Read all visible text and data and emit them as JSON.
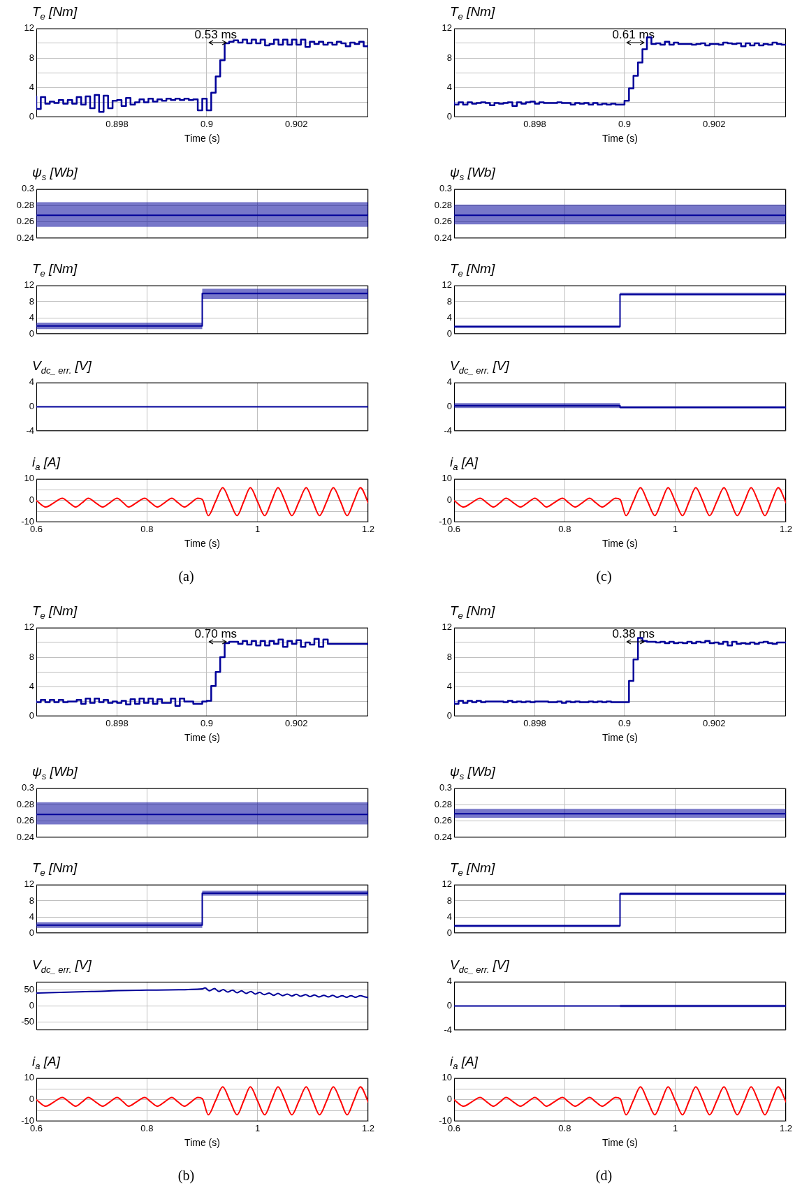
{
  "chart_data": [
    {
      "type": "step",
      "title": "T$_{e}$ [Nm]",
      "xlabel": "Time (s)",
      "xlim": [
        0.8962,
        0.9036
      ],
      "xticks": [
        0.898,
        0.9,
        0.902
      ],
      "ylim": [
        0,
        12
      ],
      "yticks": [
        0,
        {
          "value": 2,
          "label": null
        },
        4,
        {
          "value": 6,
          "label": null
        },
        8,
        {
          "value": 10,
          "label": null
        },
        12
      ],
      "grid": true,
      "x": [
        0.8962,
        0.8963,
        0.8964,
        0.8965,
        0.8966,
        0.8967,
        0.8968,
        0.8969,
        0.897,
        0.8971,
        0.8972,
        0.8973,
        0.8974,
        0.8975,
        0.8976,
        0.8977,
        0.8978,
        0.8979,
        0.898,
        0.8981,
        0.8982,
        0.8983,
        0.8984,
        0.8985,
        0.8986,
        0.8987,
        0.8988,
        0.8989,
        0.899,
        0.8991,
        0.8992,
        0.8993,
        0.8994,
        0.8995,
        0.8996,
        0.8997,
        0.8998,
        0.8999,
        0.9,
        0.9001,
        0.9002,
        0.9003,
        0.9004,
        0.9005,
        0.9006,
        0.9007,
        0.9008,
        0.9009,
        0.901,
        0.9011,
        0.9012,
        0.9013,
        0.9014,
        0.9015,
        0.9016,
        0.9017,
        0.9018,
        0.9019,
        0.902,
        0.9021,
        0.9022,
        0.9023,
        0.9024,
        0.9025,
        0.9026,
        0.9027,
        0.9028,
        0.9029,
        0.903,
        0.9031,
        0.9032,
        0.9033,
        0.9034,
        0.9035,
        0.9036
      ],
      "series": [
        {
          "color": "#000099",
          "values": [
            2.8,
            1.1,
            2.7,
            1.8,
            2.1,
            1.9,
            2.3,
            1.8,
            2.3,
            1.8,
            2.7,
            1.7,
            2.8,
            1.2,
            3.0,
            0.7,
            2.9,
            1.2,
            2.2,
            2.3,
            1.5,
            2.6,
            1.7,
            2.0,
            2.4,
            2.0,
            2.5,
            2.1,
            2.4,
            2.2,
            2.5,
            2.3,
            2.5,
            2.3,
            2.5,
            2.3,
            2.4,
            0.9,
            2.5,
            0.9,
            3.3,
            5.5,
            7.7,
            10.0,
            10.2,
            10.4,
            10.1,
            10.5,
            10.0,
            10.5,
            10.0,
            10.5,
            9.7,
            9.9,
            10.5,
            9.8,
            10.5,
            9.8,
            10.5,
            9.8,
            10.5,
            9.5,
            10.2,
            9.9,
            10.2,
            9.8,
            10.1,
            9.8,
            10.2,
            10.0,
            9.6,
            10.1,
            9.9,
            10.2,
            9.6
          ]
        }
      ],
      "annotations": [
        "0.53 ms"
      ]
    },
    {
      "type": "line",
      "title": "ψ$_{s}$ [Wb]",
      "xlim": [
        0.6,
        1.2
      ],
      "xticks": [
        0.6,
        0.8,
        1,
        1.2
      ],
      "ylim": [
        0.24,
        0.3
      ],
      "yticks": [
        0.24,
        0.26,
        0.28,
        0.3
      ],
      "grid": true,
      "tick_labels": "y",
      "series": [
        {
          "color": "#000099",
          "x": [
            0.6,
            1.2
          ],
          "values": [
            0.268,
            0.268
          ],
          "lower": [
            0.254,
            0.254
          ],
          "upper": [
            0.284,
            0.284
          ]
        }
      ]
    },
    {
      "type": "line",
      "title": "T$_{e}$ [Nm]",
      "xlim": [
        0.6,
        1.2
      ],
      "xticks": [
        0.6,
        0.8,
        1,
        1.2
      ],
      "ylim": [
        0,
        12
      ],
      "yticks": [
        0,
        4,
        8,
        12
      ],
      "grid": true,
      "tick_labels": "y",
      "series": [
        {
          "color": "#000099",
          "x": [
            0.6,
            0.9,
            0.9,
            1.2
          ],
          "values": [
            2,
            2,
            10,
            10
          ],
          "lower": [
            1.2,
            1.2,
            8.7,
            8.7
          ],
          "upper": [
            2.8,
            2.8,
            11.2,
            11.2
          ]
        }
      ]
    },
    {
      "type": "line",
      "title": "V$_{dc_ err.}$ [V]",
      "xlim": [
        0.6,
        1.2
      ],
      "xticks": [
        0.6,
        0.8,
        1,
        1.2
      ],
      "ylim": [
        -4,
        4
      ],
      "yticks": [
        -4,
        0,
        4
      ],
      "grid": true,
      "tick_labels": "y",
      "series": [
        {
          "color": "#000099",
          "x": [
            0.6,
            1.2
          ],
          "values": [
            0,
            0
          ]
        }
      ]
    },
    {
      "type": "line",
      "title": "i$_{a}$ [A]",
      "xlabel": "Time (s)",
      "xlim": [
        0.6,
        1.2
      ],
      "xticks": [
        0.6,
        0.8,
        1,
        1.2
      ],
      "ylim": [
        -10,
        10
      ],
      "yticks": [
        -10,
        {
          "value": -5,
          "label": null
        },
        0,
        {
          "value": 5,
          "label": null
        },
        10
      ],
      "grid": true,
      "series": [
        {
          "color": "#ff0000",
          "x": [
            0.6,
            0.617,
            0.632,
            0.647,
            0.659,
            0.671,
            0.683,
            0.694,
            0.707,
            0.72,
            0.733,
            0.746,
            0.757,
            0.767,
            0.781,
            0.796,
            0.807,
            0.819,
            0.832,
            0.845,
            0.856,
            0.868,
            0.88,
            0.892,
            0.9,
            0.911,
            0.924,
            0.937,
            0.95,
            0.963,
            0.975,
            0.987,
            1.0,
            1.013,
            1.025,
            1.037,
            1.05,
            1.062,
            1.075,
            1.088,
            1.1,
            1.112,
            1.125,
            1.137,
            1.15,
            1.162,
            1.174,
            1.186,
            1.2
          ],
          "values": [
            0,
            -3,
            -1,
            1,
            -1,
            -3,
            -1,
            1,
            -1,
            -3,
            -1,
            1,
            -1,
            -3,
            -1,
            1,
            -1,
            -3,
            -1,
            1,
            -1,
            -3,
            -1,
            1,
            0.5,
            -7,
            -0.5,
            6,
            -0.5,
            -7,
            -0.5,
            6,
            -0.5,
            -7,
            -0.5,
            6,
            -0.5,
            -7,
            -0.5,
            6,
            -0.5,
            -7,
            -0.5,
            6,
            -0.5,
            -7,
            -0.5,
            6,
            -1
          ]
        }
      ],
      "annotations": [
        "(a)"
      ]
    },
    {
      "type": "step",
      "title": "T$_{e}$ [Nm]",
      "xlabel": "Time (s)",
      "xlim": [
        0.8962,
        0.9036
      ],
      "xticks": [
        0.898,
        0.9,
        0.902
      ],
      "ylim": [
        0,
        12
      ],
      "yticks": [
        0,
        {
          "value": 2,
          "label": null
        },
        4,
        {
          "value": 6,
          "label": null
        },
        8,
        {
          "value": 10,
          "label": null
        },
        12
      ],
      "grid": true,
      "x": [
        0.8962,
        0.8963,
        0.8964,
        0.8965,
        0.8966,
        0.8967,
        0.8968,
        0.8969,
        0.897,
        0.8971,
        0.8972,
        0.8973,
        0.8974,
        0.8975,
        0.8976,
        0.8977,
        0.8978,
        0.8979,
        0.898,
        0.8981,
        0.8982,
        0.8983,
        0.8984,
        0.8985,
        0.8986,
        0.8987,
        0.8988,
        0.8989,
        0.899,
        0.8991,
        0.8992,
        0.8993,
        0.8994,
        0.8995,
        0.8996,
        0.8997,
        0.8998,
        0.8999,
        0.9,
        0.9001,
        0.9002,
        0.9003,
        0.9004,
        0.9005,
        0.9006,
        0.9007,
        0.9008,
        0.9009,
        0.901,
        0.9011,
        0.9012,
        0.9013,
        0.9014,
        0.9015,
        0.9016,
        0.9017,
        0.9018,
        0.9019,
        0.902,
        0.9021,
        0.9022,
        0.9023,
        0.9024,
        0.9025,
        0.9026,
        0.9027,
        0.9028,
        0.9029,
        0.903,
        0.9031,
        0.9032,
        0.9033,
        0.9034,
        0.9035,
        0.9036
      ],
      "series": [
        {
          "color": "#000099",
          "values": [
            2.0,
            1.7,
            2.0,
            1.7,
            2.0,
            1.8,
            1.9,
            2.0,
            1.9,
            1.6,
            1.9,
            1.8,
            1.9,
            2.0,
            1.5,
            2.0,
            1.8,
            2.0,
            2.1,
            1.8,
            2.0,
            1.9,
            1.9,
            1.9,
            2.0,
            1.9,
            1.9,
            1.7,
            1.9,
            1.8,
            1.9,
            1.7,
            1.9,
            1.7,
            1.8,
            1.7,
            1.8,
            1.7,
            1.7,
            2.2,
            3.9,
            5.6,
            7.4,
            9.2,
            10.8,
            9.9,
            10.0,
            9.8,
            10.2,
            9.8,
            10.1,
            9.9,
            9.9,
            9.9,
            9.8,
            9.9,
            10.0,
            9.7,
            9.9,
            9.9,
            9.8,
            10.1,
            10.0,
            9.9,
            10.0,
            9.6,
            10.0,
            9.7,
            10.0,
            9.7,
            9.9,
            9.8,
            10.1,
            9.9,
            9.8
          ]
        }
      ],
      "annotations": [
        "0.61 ms"
      ]
    },
    {
      "type": "line",
      "title": "ψ$_{s}$ [Wb]",
      "xlim": [
        0.6,
        1.2
      ],
      "xticks": [
        0.6,
        0.8,
        1,
        1.2
      ],
      "ylim": [
        0.24,
        0.3
      ],
      "yticks": [
        0.24,
        0.26,
        0.28,
        0.3
      ],
      "grid": true,
      "tick_labels": "y",
      "series": [
        {
          "color": "#000099",
          "x": [
            0.6,
            1.2
          ],
          "values": [
            0.268,
            0.268
          ],
          "lower": [
            0.257,
            0.257
          ],
          "upper": [
            0.281,
            0.281
          ]
        }
      ]
    },
    {
      "type": "line",
      "title": "T$_{e}$ [Nm]",
      "xlim": [
        0.6,
        1.2
      ],
      "xticks": [
        0.6,
        0.8,
        1,
        1.2
      ],
      "ylim": [
        0,
        12
      ],
      "yticks": [
        0,
        4,
        8,
        12
      ],
      "grid": true,
      "tick_labels": "y",
      "series": [
        {
          "color": "#000099",
          "x": [
            0.6,
            0.9,
            0.9,
            1.2
          ],
          "values": [
            1.8,
            1.8,
            9.8,
            9.8
          ],
          "lower": [
            1.5,
            1.5,
            9.5,
            9.5
          ],
          "upper": [
            2.1,
            2.1,
            10.2,
            10.2
          ]
        }
      ]
    },
    {
      "type": "line",
      "title": "V$_{dc_ err.}$ [V]",
      "xlim": [
        0.6,
        1.2
      ],
      "xticks": [
        0.6,
        0.8,
        1,
        1.2
      ],
      "ylim": [
        -4,
        4
      ],
      "yticks": [
        -4,
        0,
        4
      ],
      "grid": true,
      "tick_labels": "y",
      "series": [
        {
          "color": "#000099",
          "x": [
            0.6,
            0.9,
            0.9,
            1.2
          ],
          "values": [
            0.2,
            0.2,
            -0.1,
            -0.1
          ],
          "lower": [
            -0.2,
            -0.2,
            -0.3,
            -0.3
          ],
          "upper": [
            0.6,
            0.6,
            0.1,
            0.1
          ]
        }
      ]
    },
    {
      "type": "line",
      "title": "i$_{a}$ [A]",
      "xlabel": "Time (s)",
      "xlim": [
        0.6,
        1.2
      ],
      "xticks": [
        0.6,
        0.8,
        1,
        1.2
      ],
      "ylim": [
        -10,
        10
      ],
      "yticks": [
        -10,
        {
          "value": -5,
          "label": null
        },
        0,
        {
          "value": 5,
          "label": null
        },
        10
      ],
      "grid": true,
      "series": [
        {
          "color": "#ff0000",
          "x": [
            0.6,
            0.617,
            0.632,
            0.647,
            0.659,
            0.671,
            0.683,
            0.694,
            0.707,
            0.72,
            0.733,
            0.746,
            0.757,
            0.767,
            0.781,
            0.796,
            0.807,
            0.819,
            0.832,
            0.845,
            0.856,
            0.868,
            0.88,
            0.892,
            0.9,
            0.911,
            0.924,
            0.937,
            0.95,
            0.963,
            0.975,
            0.987,
            1.0,
            1.013,
            1.025,
            1.037,
            1.05,
            1.062,
            1.075,
            1.088,
            1.1,
            1.112,
            1.125,
            1.137,
            1.15,
            1.162,
            1.174,
            1.186,
            1.2
          ],
          "values": [
            0,
            -3,
            -1,
            1,
            -1,
            -3,
            -1,
            1,
            -1,
            -3,
            -1,
            1,
            -1,
            -3,
            -1,
            1,
            -1,
            -3,
            -1,
            1,
            -1,
            -3,
            -1,
            1,
            0.5,
            -7,
            -0.5,
            6,
            -0.5,
            -7,
            -0.5,
            6,
            -0.5,
            -7,
            -0.5,
            6,
            -0.5,
            -7,
            -0.5,
            6,
            -0.5,
            -7,
            -0.5,
            6,
            -0.5,
            -7,
            -0.5,
            6,
            -1
          ]
        }
      ],
      "annotations": [
        "(c)"
      ]
    },
    {
      "type": "step",
      "title": "T$_{e}$ [Nm]",
      "xlabel": "Time (s)",
      "xlim": [
        0.8962,
        0.9036
      ],
      "xticks": [
        0.898,
        0.9,
        0.902
      ],
      "ylim": [
        0,
        12
      ],
      "yticks": [
        0,
        {
          "value": 2,
          "label": null
        },
        4,
        {
          "value": 6,
          "label": null
        },
        8,
        {
          "value": 10,
          "label": null
        },
        12
      ],
      "grid": true,
      "x": [
        0.8962,
        0.8963,
        0.8964,
        0.8965,
        0.8966,
        0.8967,
        0.8968,
        0.8969,
        0.897,
        0.8971,
        0.8972,
        0.8973,
        0.8974,
        0.8975,
        0.8976,
        0.8977,
        0.8978,
        0.8979,
        0.898,
        0.8981,
        0.8982,
        0.8983,
        0.8984,
        0.8985,
        0.8986,
        0.8987,
        0.8988,
        0.8989,
        0.899,
        0.8991,
        0.8992,
        0.8993,
        0.8994,
        0.8995,
        0.8996,
        0.8997,
        0.8998,
        0.8999,
        0.9,
        0.9001,
        0.9002,
        0.9003,
        0.9004,
        0.9005,
        0.9006,
        0.9007,
        0.9008,
        0.9009,
        0.901,
        0.9011,
        0.9012,
        0.9013,
        0.9014,
        0.9015,
        0.9016,
        0.9017,
        0.9018,
        0.9019,
        0.902,
        0.9021,
        0.9022,
        0.9023,
        0.9024,
        0.9025,
        0.9026,
        0.9027,
        0.9028,
        0.9029,
        0.903,
        0.9031,
        0.9032,
        0.9033,
        0.9034,
        0.9035,
        0.9036
      ],
      "series": [
        {
          "color": "#000099",
          "values": [
            2.1,
            1.9,
            2.2,
            1.9,
            2.2,
            1.9,
            2.2,
            1.9,
            2.0,
            2.0,
            2.2,
            1.7,
            2.4,
            1.8,
            2.4,
            1.9,
            2.2,
            1.8,
            2.0,
            1.8,
            2.1,
            1.6,
            2.3,
            1.7,
            2.4,
            1.8,
            2.4,
            1.7,
            2.3,
            1.8,
            1.8,
            2.4,
            1.4,
            2.4,
            2.0,
            2.0,
            1.7,
            1.7,
            2.0,
            2.1,
            4.1,
            6.0,
            8.0,
            9.9,
            10.1,
            10.1,
            9.8,
            10.2,
            9.7,
            10.2,
            9.6,
            10.2,
            9.6,
            10.2,
            9.8,
            10.4,
            9.4,
            10.2,
            9.8,
            10.3,
            9.4,
            10.0,
            9.7,
            10.5,
            9.4,
            10.4,
            9.8,
            9.8,
            9.8,
            9.8,
            9.8,
            9.8,
            9.8,
            9.8,
            9.8
          ]
        }
      ],
      "annotations": [
        "0.70 ms"
      ]
    },
    {
      "type": "line",
      "title": "ψ$_{s}$ [Wb]",
      "xlim": [
        0.6,
        1.2
      ],
      "xticks": [
        0.6,
        0.8,
        1,
        1.2
      ],
      "ylim": [
        0.24,
        0.3
      ],
      "yticks": [
        0.24,
        0.26,
        0.28,
        0.3
      ],
      "grid": true,
      "tick_labels": "y",
      "series": [
        {
          "color": "#000099",
          "x": [
            0.6,
            1.2
          ],
          "values": [
            0.268,
            0.268
          ],
          "lower": [
            0.256,
            0.256
          ],
          "upper": [
            0.283,
            0.283
          ]
        }
      ]
    },
    {
      "type": "line",
      "title": "T$_{e}$ [Nm]",
      "xlim": [
        0.6,
        1.2
      ],
      "xticks": [
        0.6,
        0.8,
        1,
        1.2
      ],
      "ylim": [
        0,
        12
      ],
      "yticks": [
        0,
        4,
        8,
        12
      ],
      "grid": true,
      "tick_labels": "y",
      "series": [
        {
          "color": "#000099",
          "x": [
            0.6,
            0.9,
            0.9,
            1.2
          ],
          "values": [
            2,
            2,
            9.9,
            9.9
          ],
          "lower": [
            1.3,
            1.3,
            9.3,
            9.3
          ],
          "upper": [
            2.7,
            2.7,
            10.5,
            10.5
          ]
        }
      ]
    },
    {
      "type": "line",
      "title": "V$_{dc_ err.}$ [V]",
      "xlim": [
        0.6,
        1.2
      ],
      "xticks": [
        0.6,
        0.8,
        1,
        1.2
      ],
      "ylim": [
        -75,
        75
      ],
      "yticks": [
        -50,
        0,
        50
      ],
      "grid": true,
      "tick_labels": "y",
      "series": [
        {
          "color": "#000099",
          "x": [
            0.6,
            0.7,
            0.8,
            0.9,
            0.905,
            0.913,
            0.922,
            0.93,
            0.938,
            0.946,
            0.955,
            0.963,
            0.971,
            0.979,
            0.988,
            0.996,
            1.004,
            1.012,
            1.021,
            1.029,
            1.037,
            1.045,
            1.054,
            1.062,
            1.07,
            1.078,
            1.087,
            1.095,
            1.103,
            1.111,
            1.12,
            1.128,
            1.136,
            1.144,
            1.153,
            1.161,
            1.169,
            1.177,
            1.186,
            1.194,
            1.2
          ],
          "values": [
            40,
            45,
            49,
            53,
            56,
            47,
            54,
            45,
            51,
            43,
            49,
            41,
            47,
            39,
            45,
            37,
            42,
            35,
            40,
            33,
            39,
            32,
            37,
            31,
            36,
            30,
            35,
            29,
            34,
            28,
            33,
            28,
            33,
            27,
            32,
            27,
            32,
            27,
            32,
            28,
            26
          ]
        }
      ]
    },
    {
      "type": "line",
      "title": "i$_{a}$ [A]",
      "xlabel": "Time (s)",
      "xlim": [
        0.6,
        1.2
      ],
      "xticks": [
        0.6,
        0.8,
        1,
        1.2
      ],
      "ylim": [
        -10,
        10
      ],
      "yticks": [
        -10,
        {
          "value": -5,
          "label": null
        },
        0,
        {
          "value": 5,
          "label": null
        },
        10
      ],
      "grid": true,
      "series": [
        {
          "color": "#ff0000",
          "x": [
            0.6,
            0.617,
            0.632,
            0.647,
            0.659,
            0.671,
            0.683,
            0.694,
            0.707,
            0.72,
            0.733,
            0.746,
            0.757,
            0.767,
            0.781,
            0.796,
            0.807,
            0.819,
            0.832,
            0.845,
            0.856,
            0.868,
            0.88,
            0.892,
            0.9,
            0.911,
            0.924,
            0.937,
            0.95,
            0.963,
            0.975,
            0.987,
            1.0,
            1.013,
            1.025,
            1.037,
            1.05,
            1.062,
            1.075,
            1.088,
            1.1,
            1.112,
            1.125,
            1.137,
            1.15,
            1.162,
            1.174,
            1.186,
            1.2
          ],
          "values": [
            0,
            -3,
            -1,
            1,
            -1,
            -3,
            -1,
            1,
            -1,
            -3,
            -1,
            1,
            -1,
            -3,
            -1,
            1,
            -1,
            -3,
            -1,
            1,
            -1,
            -3,
            -1,
            1,
            0.5,
            -7,
            -0.5,
            6,
            -0.5,
            -7,
            -0.5,
            6,
            -0.5,
            -7,
            -0.5,
            6,
            -0.5,
            -7,
            -0.5,
            6,
            -0.5,
            -7,
            -0.5,
            6,
            -0.5,
            -7,
            -0.5,
            6,
            -1
          ]
        }
      ],
      "annotations": [
        "(b)"
      ]
    },
    {
      "type": "step",
      "title": "T$_{e}$ [Nm]",
      "xlabel": "Time (s)",
      "xlim": [
        0.8962,
        0.9036
      ],
      "xticks": [
        0.898,
        0.9,
        0.902
      ],
      "ylim": [
        0,
        12
      ],
      "yticks": [
        0,
        {
          "value": 2,
          "label": null
        },
        4,
        {
          "value": 6,
          "label": null
        },
        8,
        {
          "value": 10,
          "label": null
        },
        12
      ],
      "grid": true,
      "x": [
        0.8962,
        0.8963,
        0.8964,
        0.8965,
        0.8966,
        0.8967,
        0.8968,
        0.8969,
        0.897,
        0.8971,
        0.8972,
        0.8973,
        0.8974,
        0.8975,
        0.8976,
        0.8977,
        0.8978,
        0.8979,
        0.898,
        0.8981,
        0.8982,
        0.8983,
        0.8984,
        0.8985,
        0.8986,
        0.8987,
        0.8988,
        0.8989,
        0.899,
        0.8991,
        0.8992,
        0.8993,
        0.8994,
        0.8995,
        0.8996,
        0.8997,
        0.8998,
        0.8999,
        0.9,
        0.9001,
        0.9002,
        0.9003,
        0.9004,
        0.9005,
        0.9006,
        0.9007,
        0.9008,
        0.9009,
        0.901,
        0.9011,
        0.9012,
        0.9013,
        0.9014,
        0.9015,
        0.9016,
        0.9017,
        0.9018,
        0.9019,
        0.902,
        0.9021,
        0.9022,
        0.9023,
        0.9024,
        0.9025,
        0.9026,
        0.9027,
        0.9028,
        0.9029,
        0.903,
        0.9031,
        0.9032,
        0.9033,
        0.9034,
        0.9035,
        0.9036
      ],
      "series": [
        {
          "color": "#000099",
          "values": [
            2.1,
            1.7,
            2.1,
            1.8,
            2.1,
            1.9,
            2.1,
            1.9,
            2.0,
            2.0,
            2.0,
            2.0,
            1.9,
            2.1,
            1.9,
            2.0,
            1.9,
            2.0,
            1.9,
            2.0,
            2.0,
            2.0,
            1.9,
            1.9,
            2.0,
            1.8,
            2.0,
            1.9,
            2.0,
            1.9,
            1.9,
            2.0,
            1.9,
            2.0,
            1.9,
            2.0,
            1.9,
            1.9,
            1.9,
            1.9,
            4.8,
            7.7,
            10.6,
            10.2,
            10.1,
            10.1,
            10.0,
            10.1,
            9.9,
            10.1,
            9.9,
            10.0,
            9.9,
            10.1,
            9.9,
            10.1,
            10.0,
            10.2,
            9.9,
            10.0,
            9.8,
            10.1,
            9.6,
            10.1,
            9.8,
            9.9,
            9.8,
            10.0,
            9.8,
            10.0,
            10.1,
            9.9,
            9.8,
            10.0,
            10.0
          ]
        }
      ],
      "annotations": [
        "0.38 ms"
      ]
    },
    {
      "type": "line",
      "title": "ψ$_{s}$ [Wb]",
      "xlim": [
        0.6,
        1.2
      ],
      "xticks": [
        0.6,
        0.8,
        1,
        1.2
      ],
      "ylim": [
        0.24,
        0.3
      ],
      "yticks": [
        0.24,
        0.26,
        0.28,
        0.3
      ],
      "grid": true,
      "tick_labels": "y",
      "series": [
        {
          "color": "#000099",
          "x": [
            0.6,
            1.2
          ],
          "values": [
            0.269,
            0.269
          ],
          "lower": [
            0.264,
            0.264
          ],
          "upper": [
            0.275,
            0.275
          ]
        }
      ]
    },
    {
      "type": "line",
      "title": "T$_{e}$ [Nm]",
      "xlim": [
        0.6,
        1.2
      ],
      "xticks": [
        0.6,
        0.8,
        1,
        1.2
      ],
      "ylim": [
        0,
        12
      ],
      "yticks": [
        0,
        4,
        8,
        12
      ],
      "grid": true,
      "tick_labels": "y",
      "series": [
        {
          "color": "#000099",
          "x": [
            0.6,
            0.9,
            0.9,
            1.2
          ],
          "values": [
            1.8,
            1.8,
            9.7,
            9.7
          ],
          "lower": [
            1.5,
            1.5,
            9.4,
            9.4
          ],
          "upper": [
            2.1,
            2.1,
            10.1,
            10.1
          ]
        }
      ]
    },
    {
      "type": "line",
      "title": "V$_{dc_ err.}$ [V]",
      "xlim": [
        0.6,
        1.2
      ],
      "xticks": [
        0.6,
        0.8,
        1,
        1.2
      ],
      "ylim": [
        -4,
        4
      ],
      "yticks": [
        -4,
        0,
        4
      ],
      "grid": true,
      "tick_labels": "y",
      "series": [
        {
          "color": "#000099",
          "x": [
            0.6,
            0.9,
            0.9,
            1.2
          ],
          "values": [
            0,
            0,
            0,
            0
          ],
          "lower": [
            0,
            0,
            -0.2,
            -0.2
          ],
          "upper": [
            0,
            0,
            0.2,
            0.2
          ]
        }
      ]
    },
    {
      "type": "line",
      "title": "i$_{a}$ [A]",
      "xlabel": "Time (s)",
      "xlim": [
        0.6,
        1.2
      ],
      "xticks": [
        0.6,
        0.8,
        1,
        1.2
      ],
      "ylim": [
        -10,
        10
      ],
      "yticks": [
        -10,
        {
          "value": -5,
          "label": null
        },
        0,
        {
          "value": 5,
          "label": null
        },
        10
      ],
      "grid": true,
      "series": [
        {
          "color": "#ff0000",
          "x": [
            0.6,
            0.617,
            0.632,
            0.647,
            0.659,
            0.671,
            0.683,
            0.694,
            0.707,
            0.72,
            0.733,
            0.746,
            0.757,
            0.767,
            0.781,
            0.796,
            0.807,
            0.819,
            0.832,
            0.845,
            0.856,
            0.868,
            0.88,
            0.892,
            0.9,
            0.911,
            0.924,
            0.937,
            0.95,
            0.963,
            0.975,
            0.987,
            1.0,
            1.013,
            1.025,
            1.037,
            1.05,
            1.062,
            1.075,
            1.088,
            1.1,
            1.112,
            1.125,
            1.137,
            1.15,
            1.162,
            1.174,
            1.186,
            1.2
          ],
          "values": [
            0,
            -3,
            -1,
            1,
            -1,
            -3,
            -1,
            1,
            -1,
            -3,
            -1,
            1,
            -1,
            -3,
            -1,
            1,
            -1,
            -3,
            -1,
            1,
            -1,
            -3,
            -1,
            1,
            0.5,
            -7,
            -0.5,
            6,
            -0.5,
            -7,
            -0.5,
            6,
            -0.5,
            -7,
            -0.5,
            6,
            -0.5,
            -7,
            -0.5,
            6,
            -0.5,
            -7,
            -0.5,
            6,
            -0.5,
            -7,
            -0.5,
            6,
            -1
          ]
        }
      ],
      "annotations": [
        "(d)"
      ]
    }
  ]
}
